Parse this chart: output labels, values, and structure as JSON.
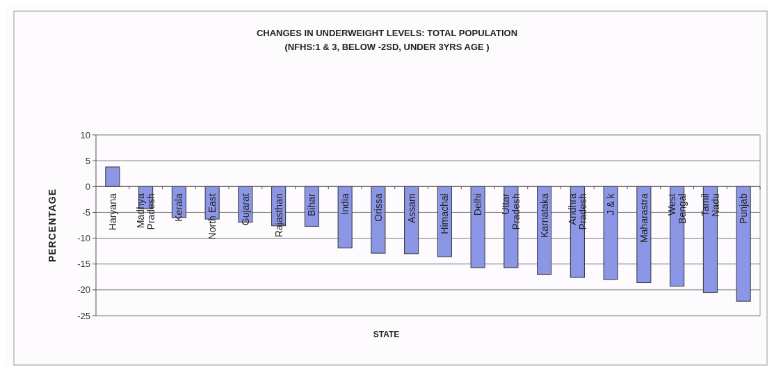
{
  "chart_data": {
    "type": "bar",
    "title": "CHANGES IN UNDERWEIGHT LEVELS: TOTAL POPULATION",
    "subtitle": "(NFHS:1 & 3, BELOW -2SD, UNDER 3YRS AGE )",
    "xlabel": "STATE",
    "ylabel": "PERCENTAGE",
    "categories": [
      "Haryana",
      "Madhya\nPradesh",
      "Kerala",
      "North East",
      "Gujarat",
      "Rajasthan",
      "Bihar",
      "India",
      "Orissa",
      "Assam",
      "Himachal",
      "Delhi",
      "Uttar\nPradesh",
      "Karnataka",
      "Andhra\nPradesh",
      "J & k",
      "Maharastra",
      "West\nBengal",
      "Tamil\nNadu",
      "Punjab"
    ],
    "values": [
      3.8,
      -4.3,
      -6,
      -6.3,
      -6.9,
      -7.6,
      -7.7,
      -11.9,
      -12.9,
      -13,
      -13.6,
      -15.7,
      -15.7,
      -17,
      -17.6,
      -18,
      -18.6,
      -19.3,
      -20.5,
      -22.2
    ],
    "color": "#8c96e6",
    "ylim": [
      -25,
      10
    ],
    "yticks": [
      -25,
      -20,
      -15,
      -10,
      -5,
      0,
      5,
      10
    ],
    "grid": "y"
  }
}
